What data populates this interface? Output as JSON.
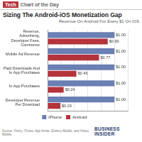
{
  "header": [
    "Tech",
    "Chart of the Day"
  ],
  "source": "Source: Flurry, iTunes, App Annie, Distimo Mobile, and Vision Mobile",
  "logo": "BUSINESS INSIDER",
  "chart_data": {
    "type": "bar",
    "orientation": "horizontal",
    "title": "Sizing The Android-iOS Monetization Gap",
    "subtitle": "Revenue On Android For Every $1 On iOS",
    "categories": [
      "Revenue, Advertising, Developer Fees, Commerce",
      "Mobile Ad Revenue",
      "Paid Downloads And In App Purchases",
      "In App Purchases",
      "Developer Revenue Per Download"
    ],
    "series": [
      {
        "name": "iPhone",
        "color": "#6a7fb3",
        "values": [
          1,
          1,
          1,
          1,
          1
        ],
        "value_labels": [
          "$1.00",
          "$1.00",
          "$1.00",
          "$1.00",
          "$1.00"
        ]
      },
      {
        "name": "Android",
        "color": "#b5333b",
        "values": [
          0.9,
          0.77,
          0.43,
          0.24,
          0.19
        ],
        "value_labels": [
          "$0.90",
          "$0.77",
          "$0.43",
          "$0.24",
          "$0.19"
        ]
      }
    ],
    "xlim": [
      0,
      1.2
    ],
    "xticks": [
      0,
      0.2,
      0.4,
      0.6,
      0.8,
      1,
      1.2
    ],
    "grid": true,
    "legend": "bottom",
    "data_labels": true,
    "tick_labels": "y"
  }
}
